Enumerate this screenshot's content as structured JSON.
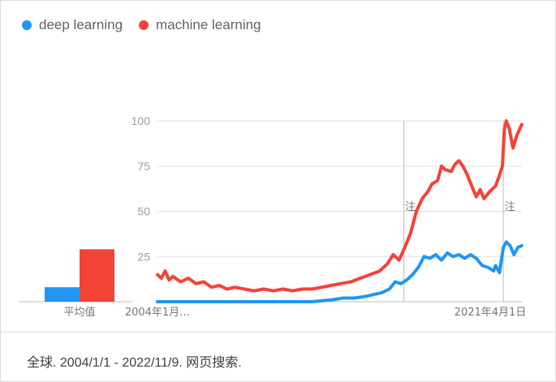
{
  "footer": {
    "text": "全球. 2004/1/1 - 2022/11/9. 网页搜索."
  },
  "colors": {
    "deep_learning": "#2196f3",
    "machine_learning": "#f44336",
    "grid": "#e0e0e0",
    "axis_text": "#9e9e9e"
  },
  "chart_data": [
    {
      "type": "line",
      "title": "",
      "xlabel": "",
      "ylabel": "",
      "x_range": [
        "2004/1/1",
        "2022/11/9"
      ],
      "xtick_labels": [
        "2004年1月…",
        "2021年4月1日"
      ],
      "yticks": [
        25,
        50,
        75,
        100
      ],
      "ylim": [
        0,
        100
      ],
      "grid": true,
      "notes": [
        "注",
        "注"
      ],
      "legend": [
        "deep learning",
        "machine learning"
      ],
      "legend_position": "top-left",
      "series": [
        {
          "name": "deep learning",
          "points": [
            [
              2004.0,
              0
            ],
            [
              2005.0,
              0
            ],
            [
              2006.0,
              0
            ],
            [
              2007.0,
              0
            ],
            [
              2008.0,
              0
            ],
            [
              2009.0,
              0
            ],
            [
              2010.0,
              0
            ],
            [
              2011.0,
              0
            ],
            [
              2012.0,
              0
            ],
            [
              2013.0,
              1
            ],
            [
              2013.6,
              2
            ],
            [
              2014.2,
              2
            ],
            [
              2014.8,
              3
            ],
            [
              2015.2,
              4
            ],
            [
              2015.6,
              5
            ],
            [
              2016.0,
              7
            ],
            [
              2016.3,
              11
            ],
            [
              2016.6,
              10
            ],
            [
              2016.9,
              12
            ],
            [
              2017.2,
              15
            ],
            [
              2017.5,
              19
            ],
            [
              2017.8,
              25
            ],
            [
              2018.1,
              24
            ],
            [
              2018.4,
              26
            ],
            [
              2018.7,
              23
            ],
            [
              2019.0,
              27
            ],
            [
              2019.3,
              25
            ],
            [
              2019.6,
              26
            ],
            [
              2019.9,
              24
            ],
            [
              2020.2,
              26
            ],
            [
              2020.5,
              24
            ],
            [
              2020.8,
              20
            ],
            [
              2021.1,
              19
            ],
            [
              2021.4,
              17
            ],
            [
              2021.5,
              20
            ],
            [
              2021.7,
              16
            ],
            [
              2021.9,
              30
            ],
            [
              2022.05,
              33
            ],
            [
              2022.25,
              31
            ],
            [
              2022.45,
              26
            ],
            [
              2022.65,
              30
            ],
            [
              2022.85,
              31
            ]
          ]
        },
        {
          "name": "machine learning",
          "points": [
            [
              2004.0,
              15
            ],
            [
              2004.2,
              13
            ],
            [
              2004.4,
              17
            ],
            [
              2004.6,
              12
            ],
            [
              2004.8,
              14
            ],
            [
              2005.2,
              11
            ],
            [
              2005.6,
              13
            ],
            [
              2006.0,
              10
            ],
            [
              2006.4,
              11
            ],
            [
              2006.8,
              8
            ],
            [
              2007.2,
              9
            ],
            [
              2007.6,
              7
            ],
            [
              2008.0,
              8
            ],
            [
              2008.5,
              7
            ],
            [
              2009.0,
              6
            ],
            [
              2009.5,
              7
            ],
            [
              2010.0,
              6
            ],
            [
              2010.5,
              7
            ],
            [
              2011.0,
              6
            ],
            [
              2011.5,
              7
            ],
            [
              2012.0,
              7
            ],
            [
              2012.5,
              8
            ],
            [
              2013.0,
              9
            ],
            [
              2013.5,
              10
            ],
            [
              2014.0,
              11
            ],
            [
              2014.5,
              13
            ],
            [
              2015.0,
              15
            ],
            [
              2015.5,
              17
            ],
            [
              2015.9,
              21
            ],
            [
              2016.2,
              26
            ],
            [
              2016.5,
              23
            ],
            [
              2016.8,
              30
            ],
            [
              2017.1,
              38
            ],
            [
              2017.4,
              50
            ],
            [
              2017.7,
              57
            ],
            [
              2018.0,
              61
            ],
            [
              2018.2,
              65
            ],
            [
              2018.5,
              67
            ],
            [
              2018.7,
              75
            ],
            [
              2018.9,
              73
            ],
            [
              2019.2,
              72
            ],
            [
              2019.4,
              76
            ],
            [
              2019.6,
              78
            ],
            [
              2019.8,
              75
            ],
            [
              2020.0,
              71
            ],
            [
              2020.3,
              63
            ],
            [
              2020.5,
              58
            ],
            [
              2020.7,
              62
            ],
            [
              2020.9,
              57
            ],
            [
              2021.2,
              61
            ],
            [
              2021.5,
              64
            ],
            [
              2021.7,
              70
            ],
            [
              2021.85,
              75
            ],
            [
              2021.95,
              95
            ],
            [
              2022.05,
              100
            ],
            [
              2022.2,
              96
            ],
            [
              2022.4,
              85
            ],
            [
              2022.6,
              92
            ],
            [
              2022.85,
              98
            ]
          ]
        }
      ],
      "average_chart": {
        "type": "bar",
        "label": "平均值",
        "values": [
          {
            "series": "deep learning",
            "value": 8
          },
          {
            "series": "machine learning",
            "value": 29
          }
        ]
      }
    }
  ]
}
